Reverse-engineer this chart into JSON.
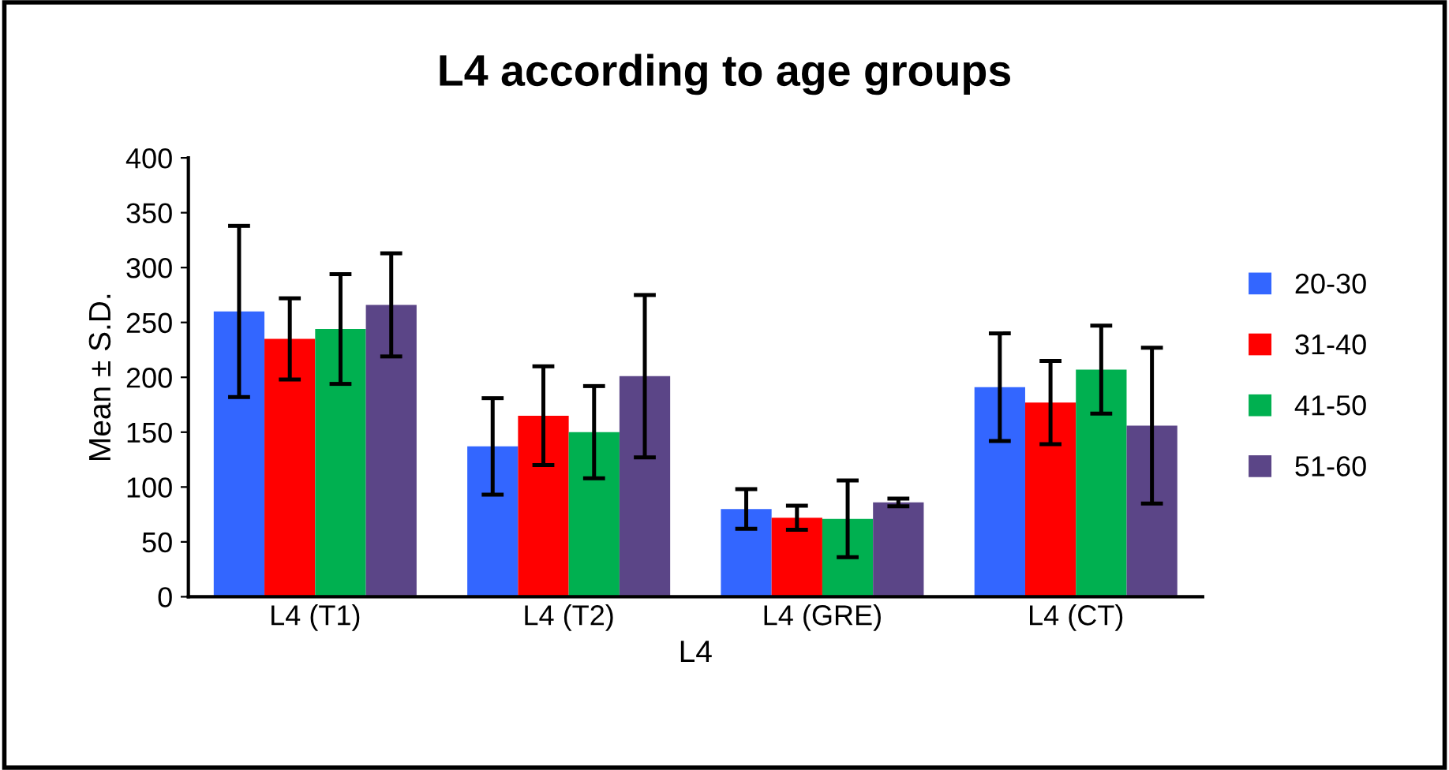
{
  "chart_data": {
    "type": "bar",
    "title": "L4 according to age groups",
    "xlabel": "L4",
    "ylabel": "Mean ± S.D.",
    "categories": [
      "L4 (T1)",
      "L4 (T2)",
      "L4 (GRE)",
      "L4 (CT)"
    ],
    "series": [
      {
        "name": "20-30",
        "color": "#3366ff",
        "values": [
          260,
          137,
          80,
          191
        ],
        "errors": [
          78,
          44,
          18,
          49
        ]
      },
      {
        "name": "31-40",
        "color": "#ff0000",
        "values": [
          235,
          165,
          72,
          177
        ],
        "errors": [
          37,
          45,
          11,
          38
        ]
      },
      {
        "name": "41-50",
        "color": "#00b050",
        "values": [
          244,
          150,
          71,
          207
        ],
        "errors": [
          50,
          42,
          35,
          40
        ]
      },
      {
        "name": "51-60",
        "color": "#5b4587",
        "values": [
          266,
          201,
          86,
          156
        ],
        "errors": [
          47,
          74,
          3.5,
          71
        ]
      }
    ],
    "ylim": [
      0,
      400
    ],
    "yticks": [
      0,
      50,
      100,
      150,
      200,
      250,
      300,
      350,
      400
    ],
    "grid": false,
    "legend": "right"
  }
}
